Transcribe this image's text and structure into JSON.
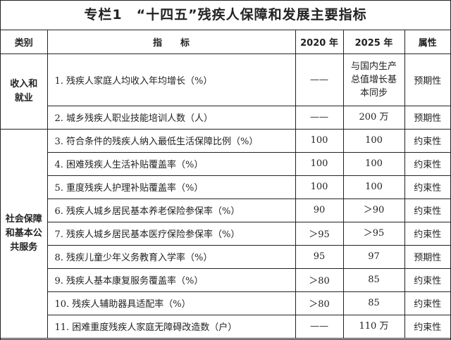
{
  "title": "专栏1　“十四五”残疾人保障和发展主要指标",
  "headers": {
    "category": "类别",
    "indicator": "指　　标",
    "y2020": "2020 年",
    "y2025": "2025 年",
    "attribute": "属性"
  },
  "groups": [
    {
      "category": "收入和就业",
      "rows": [
        {
          "indicator": "1. 残疾人家庭人均收入年均增长（%）",
          "y2020": "——",
          "y2025": "与国内生产总值增长基本同步",
          "attribute": "预期性"
        },
        {
          "indicator": "2. 城乡残疾人职业技能培训人数（人）",
          "y2020": "——",
          "y2025": "200 万",
          "attribute": "预期性"
        }
      ]
    },
    {
      "category": "社会保障和基本公共服务",
      "rows": [
        {
          "indicator": "3. 符合条件的残疾人纳入最低生活保障比例（%）",
          "y2020": "100",
          "y2025": "100",
          "attribute": "约束性"
        },
        {
          "indicator": "4. 困难残疾人生活补贴覆盖率（%）",
          "y2020": "100",
          "y2025": "100",
          "attribute": "约束性"
        },
        {
          "indicator": "5. 重度残疾人护理补贴覆盖率（%）",
          "y2020": "100",
          "y2025": "100",
          "attribute": "约束性"
        },
        {
          "indicator": "6. 残疾人城乡居民基本养老保险参保率（%）",
          "y2020": "90",
          "y2025": "＞90",
          "attribute": "约束性"
        },
        {
          "indicator": "7. 残疾人城乡居民基本医疗保险参保率（%）",
          "y2020": "＞95",
          "y2025": "＞95",
          "attribute": "约束性"
        },
        {
          "indicator": "8. 残疾儿童少年义务教育入学率（%）",
          "y2020": "95",
          "y2025": "97",
          "attribute": "预期性"
        },
        {
          "indicator": "9. 残疾人基本康复服务覆盖率（%）",
          "y2020": "＞80",
          "y2025": "85",
          "attribute": "约束性"
        },
        {
          "indicator": "10. 残疾人辅助器具适配率（%）",
          "y2020": "＞80",
          "y2025": "85",
          "attribute": "约束性"
        },
        {
          "indicator": "11. 困难重度残疾人家庭无障碍改造数（户）",
          "y2020": "——",
          "y2025": "110 万",
          "attribute": "约束性"
        }
      ]
    }
  ]
}
